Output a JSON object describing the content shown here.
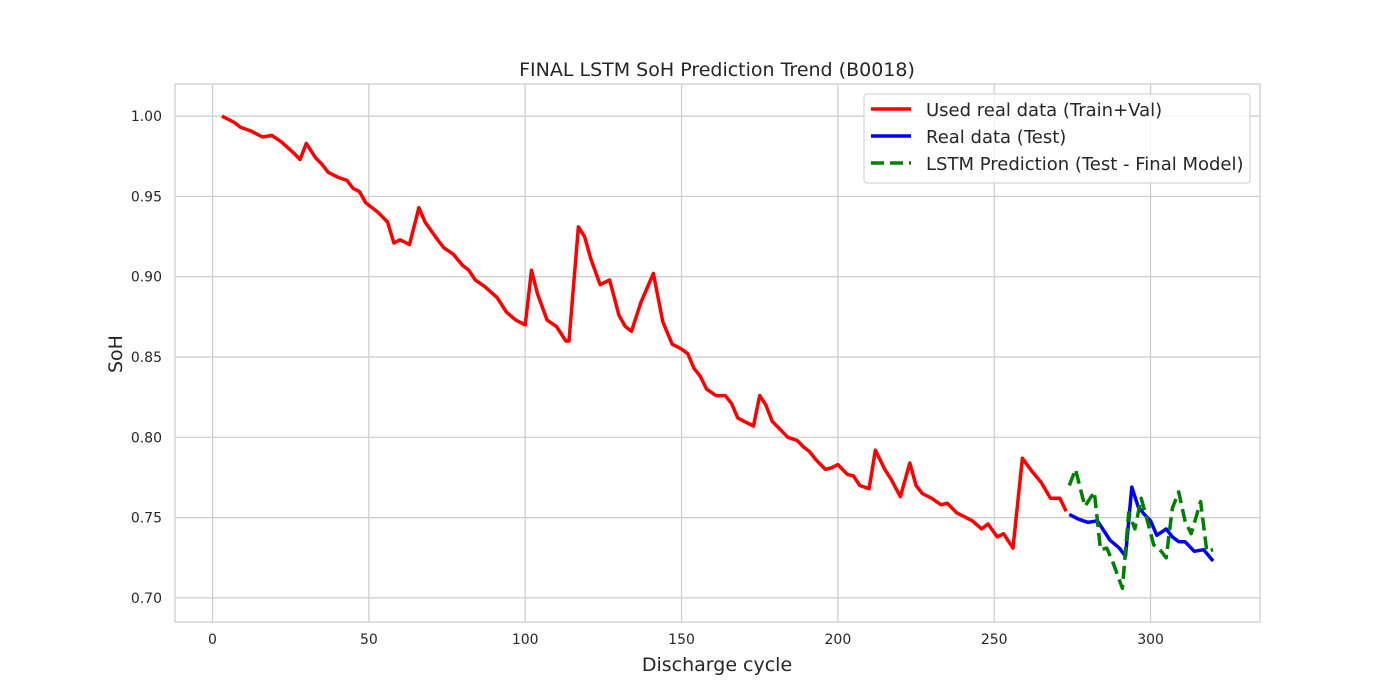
{
  "chart_data": {
    "type": "line",
    "title": "FINAL LSTM SoH Prediction Trend (B0018)",
    "xlabel": "Discharge cycle",
    "ylabel": "SoH",
    "xlim": [
      -12,
      335
    ],
    "ylim": [
      0.685,
      1.02
    ],
    "xticks": [
      0,
      50,
      100,
      150,
      200,
      250,
      300
    ],
    "yticks": [
      0.7,
      0.75,
      0.8,
      0.85,
      0.9,
      0.95,
      1.0
    ],
    "grid": true,
    "legend_position": "top-right",
    "series": [
      {
        "name": "Used real data (Train+Val)",
        "color": "#ff0000",
        "style": "solid",
        "x": [
          3,
          7,
          9,
          12,
          16,
          19,
          22,
          26,
          28,
          30,
          33,
          35,
          37,
          40,
          43,
          45,
          47,
          49,
          53,
          56,
          58,
          60,
          63,
          66,
          68,
          72,
          74,
          77,
          80,
          82,
          84,
          87,
          91,
          94,
          97,
          100,
          102,
          104,
          107,
          110,
          113,
          114,
          117,
          119,
          121,
          124,
          127,
          130,
          132,
          134,
          137,
          141,
          144,
          147,
          150,
          152,
          154,
          156,
          158,
          161,
          164,
          166,
          168,
          170,
          173,
          175,
          177,
          179,
          181,
          184,
          187,
          189,
          191,
          193,
          196,
          198,
          200,
          203,
          205,
          207,
          210,
          212,
          215,
          217,
          220,
          223,
          225,
          227,
          230,
          233,
          235,
          238,
          240,
          243,
          246,
          248,
          251,
          253,
          256,
          259,
          262,
          265,
          268,
          271,
          273
        ],
        "y": [
          1.0,
          0.996,
          0.993,
          0.991,
          0.987,
          0.988,
          0.984,
          0.977,
          0.973,
          0.983,
          0.974,
          0.97,
          0.965,
          0.962,
          0.96,
          0.955,
          0.953,
          0.946,
          0.94,
          0.934,
          0.921,
          0.923,
          0.92,
          0.943,
          0.934,
          0.923,
          0.918,
          0.914,
          0.907,
          0.904,
          0.898,
          0.894,
          0.887,
          0.878,
          0.873,
          0.87,
          0.904,
          0.889,
          0.873,
          0.869,
          0.86,
          0.86,
          0.931,
          0.925,
          0.911,
          0.895,
          0.898,
          0.876,
          0.869,
          0.866,
          0.884,
          0.902,
          0.872,
          0.858,
          0.855,
          0.852,
          0.843,
          0.838,
          0.83,
          0.826,
          0.826,
          0.821,
          0.812,
          0.81,
          0.807,
          0.826,
          0.82,
          0.81,
          0.806,
          0.8,
          0.798,
          0.794,
          0.791,
          0.786,
          0.78,
          0.781,
          0.783,
          0.777,
          0.776,
          0.77,
          0.768,
          0.792,
          0.78,
          0.774,
          0.763,
          0.784,
          0.77,
          0.765,
          0.762,
          0.758,
          0.759,
          0.753,
          0.751,
          0.748,
          0.743,
          0.746,
          0.738,
          0.74,
          0.731,
          0.787,
          0.779,
          0.772,
          0.762,
          0.762,
          0.754
        ]
      },
      {
        "name": "Real data (Test)",
        "color": "#0000ff",
        "style": "solid",
        "x": [
          274,
          277,
          280,
          283,
          285,
          287,
          290,
          292,
          294,
          296,
          298,
          300,
          302,
          305,
          307,
          309,
          311,
          314,
          317,
          320
        ],
        "y": [
          0.752,
          0.749,
          0.747,
          0.748,
          0.742,
          0.736,
          0.731,
          0.726,
          0.769,
          0.757,
          0.752,
          0.748,
          0.739,
          0.743,
          0.738,
          0.735,
          0.735,
          0.729,
          0.73,
          0.723
        ]
      },
      {
        "name": "LSTM Prediction (Test - Final Model)",
        "color": "#008000",
        "style": "dashed",
        "x": [
          274,
          276,
          279,
          282,
          284,
          286,
          288,
          291,
          293,
          295,
          297,
          299,
          301,
          303,
          305,
          307,
          309,
          311,
          313,
          316,
          318,
          320
        ],
        "y": [
          0.77,
          0.78,
          0.757,
          0.766,
          0.73,
          0.731,
          0.722,
          0.706,
          0.753,
          0.743,
          0.762,
          0.748,
          0.733,
          0.73,
          0.725,
          0.756,
          0.766,
          0.748,
          0.74,
          0.76,
          0.729,
          0.73
        ]
      }
    ]
  }
}
